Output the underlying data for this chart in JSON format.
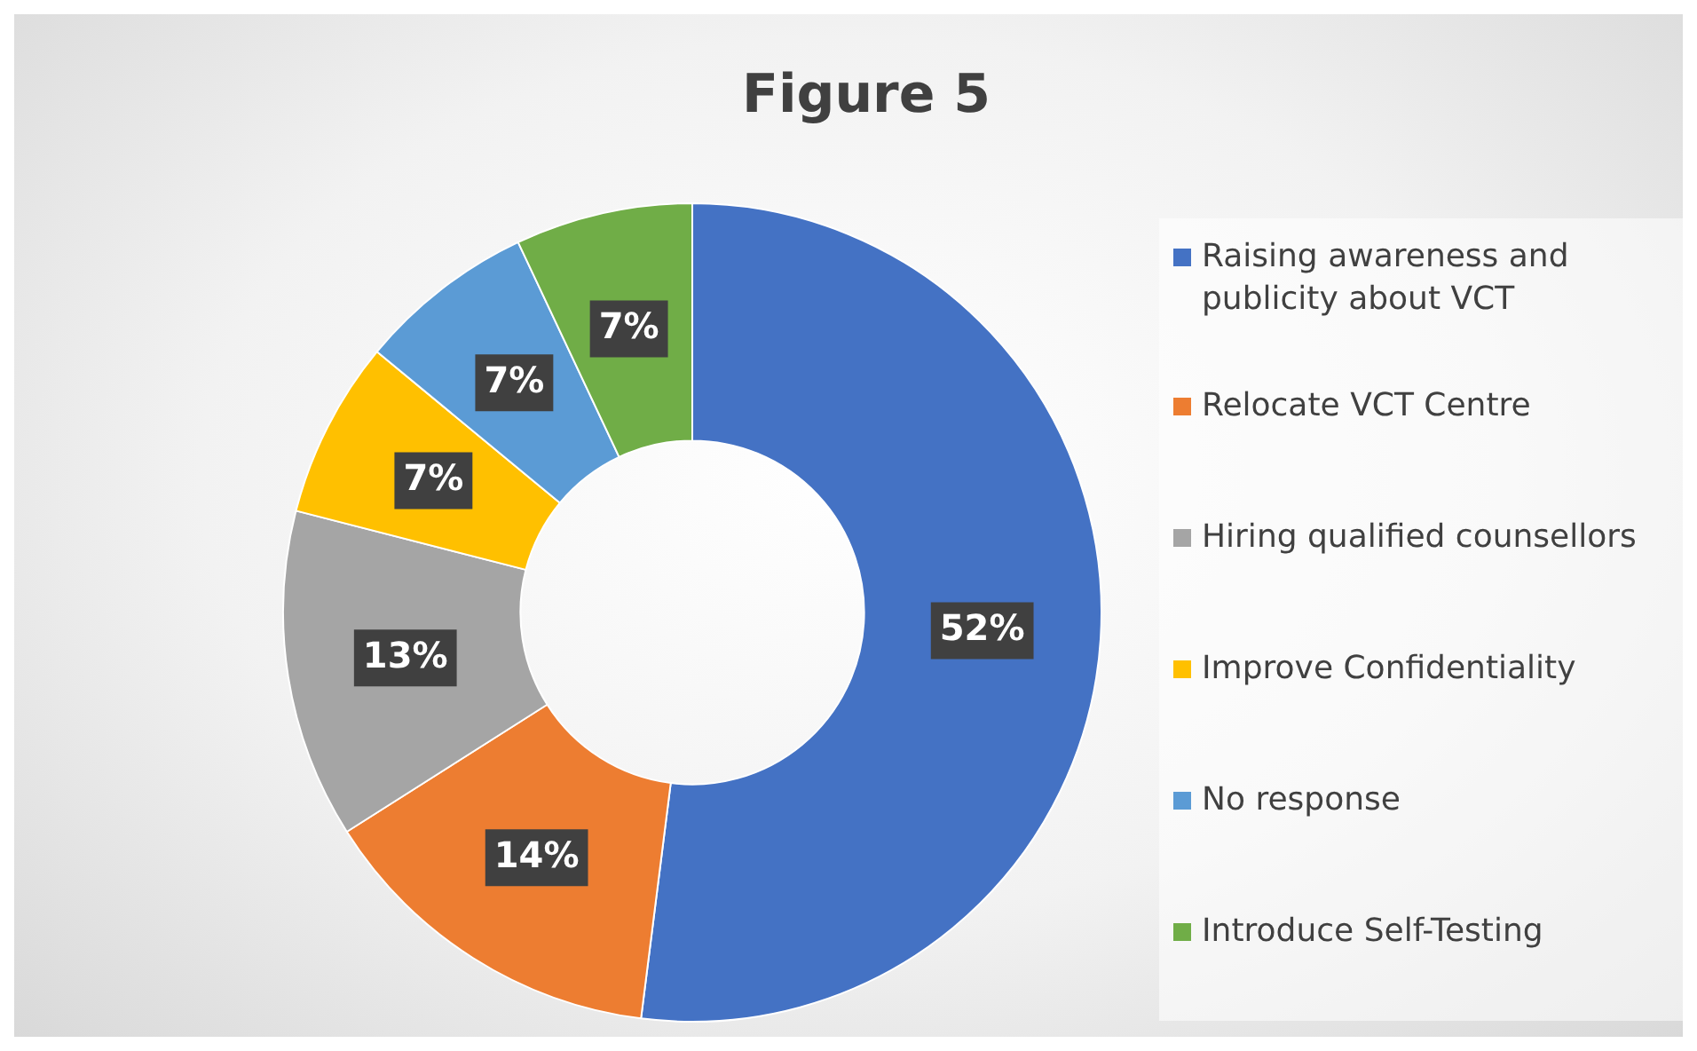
{
  "chart_data": {
    "type": "donut",
    "title": "Figure 5",
    "categories": [
      "Raising awareness and publicity about VCT",
      "Relocate VCT Centre",
      "Hiring qualified counsellors",
      "Improve Confidentiality",
      "No response",
      "Introduce Self-Testing"
    ],
    "values": [
      52,
      14,
      13,
      7,
      7,
      7
    ],
    "colors": [
      "#4472c4",
      "#ed7d31",
      "#a5a5a5",
      "#ffc000",
      "#5b9bd5",
      "#70ad47"
    ],
    "value_labels": [
      "52%",
      "14%",
      "13%",
      "7%",
      "7%",
      "7%"
    ],
    "legend": "right"
  }
}
